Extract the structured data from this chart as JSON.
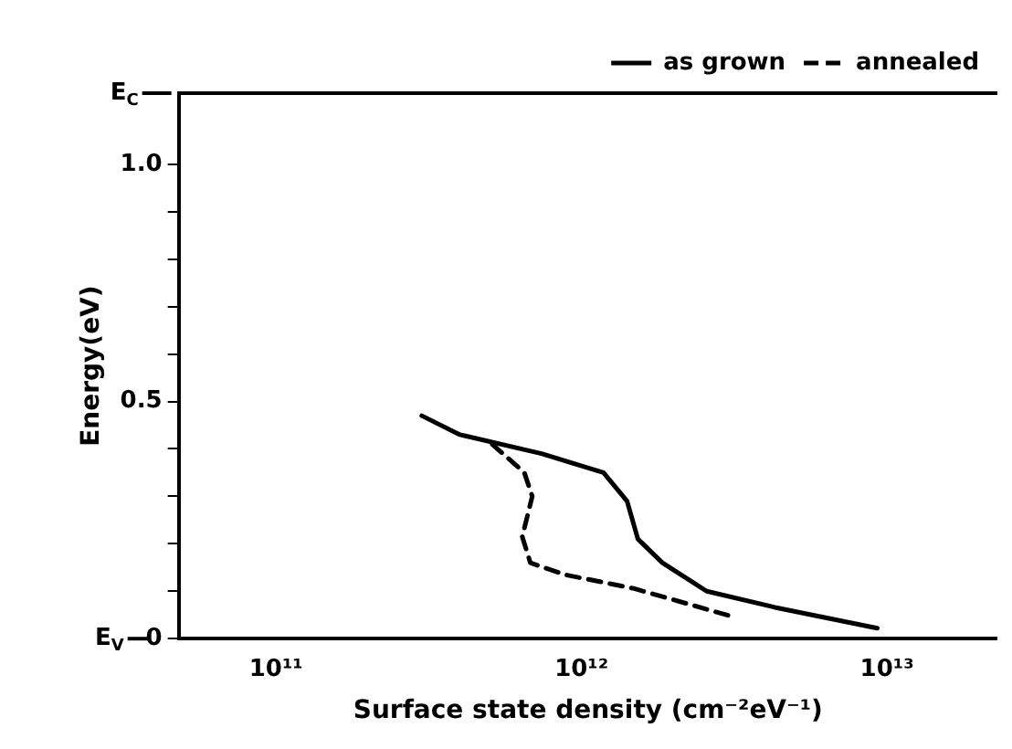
{
  "chart_data": {
    "type": "line",
    "xlabel": "Surface state density (cm⁻²eV⁻¹)",
    "ylabel": "Energy(eV)",
    "log": "x",
    "xlim": [
      48000000000.0,
      23000000000000.0
    ],
    "xticks": [
      {
        "value": 100000000000.0,
        "label": "10¹¹"
      },
      {
        "value": 1000000000000.0,
        "label": "10¹²"
      },
      {
        "value": 10000000000000.0,
        "label": "10¹³"
      }
    ],
    "ylim": [
      0,
      1.15
    ],
    "yticks": [
      0,
      {
        "value": 0.1,
        "label": null
      },
      {
        "value": 0.2,
        "label": null
      },
      {
        "value": 0.3,
        "label": null
      },
      {
        "value": 0.4,
        "label": null
      },
      0.5,
      {
        "value": 0.6,
        "label": null
      },
      {
        "value": 0.7,
        "label": null
      },
      {
        "value": 0.8,
        "label": null
      },
      {
        "value": 0.9,
        "label": null
      },
      {
        "value": 1,
        "label": "1.0"
      }
    ],
    "grid": false,
    "legend": "top right",
    "marker": "none",
    "annotations": [
      "E$_{C}$",
      "E$_{V}$"
    ],
    "series": [
      {
        "name": "as grown",
        "color": "#000000",
        "line_style": "solid",
        "x": [
          300000000000.0,
          400000000000.0,
          740000000000.0,
          1180000000000.0,
          1410000000000.0,
          1530000000000.0,
          1840000000000.0,
          2570000000000.0,
          4300000000000.0,
          9300000000000.0
        ],
        "values": [
          0.47,
          0.43,
          0.39,
          0.35,
          0.29,
          0.21,
          0.16,
          0.1,
          0.066,
          0.022
        ]
      },
      {
        "name": "annealed",
        "color": "#000000",
        "line_style": "dashed",
        "x": [
          510000000000.0,
          650000000000.0,
          690000000000.0,
          640000000000.0,
          680000000000.0,
          880000000000.0,
          1480000000000.0,
          3100000000000.0
        ],
        "values": [
          0.41,
          0.35,
          0.3,
          0.215,
          0.16,
          0.135,
          0.106,
          0.047
        ]
      }
    ]
  }
}
